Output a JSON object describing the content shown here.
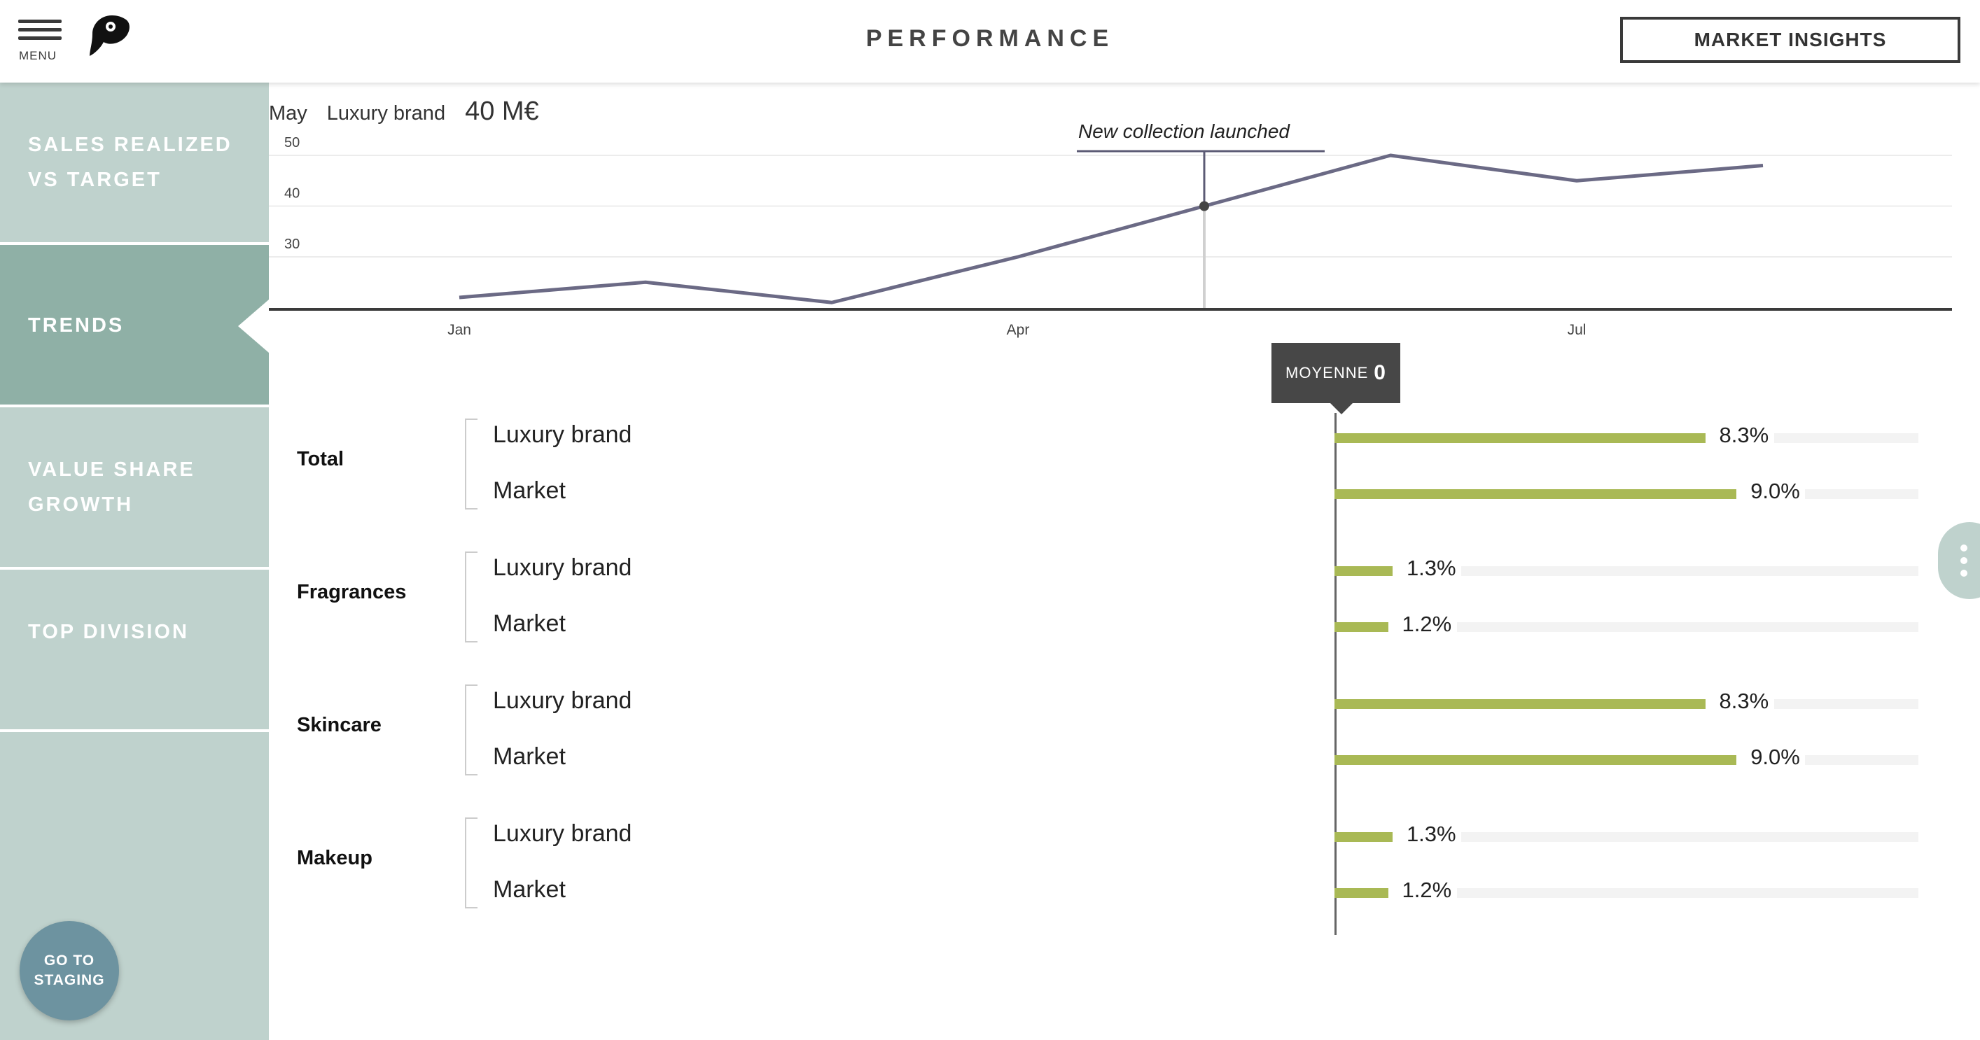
{
  "header": {
    "menu_label": "MENU",
    "title": "PERFORMANCE",
    "insights_button": "MARKET INSIGHTS"
  },
  "sidebar": {
    "items": [
      {
        "label": "SALES REALIZED\nVS TARGET",
        "active": false
      },
      {
        "label": "TRENDS",
        "active": true
      },
      {
        "label": "VALUE SHARE\nGROWTH",
        "active": false
      },
      {
        "label": "TOP DIVISION",
        "active": false
      }
    ],
    "staging_button": "GO TO\nSTAGING"
  },
  "trend": {
    "tooltip": {
      "month": "May",
      "brand": "Luxury brand",
      "value": "40 M€"
    },
    "annotation": "New collection launched"
  },
  "chart_data": {
    "type": "line",
    "x": [
      "Jan",
      "Feb",
      "Mar",
      "Apr",
      "May",
      "Jun",
      "Jul",
      "Aug"
    ],
    "x_tick_labels": [
      "Jan",
      "Apr",
      "Jul"
    ],
    "series": [
      {
        "values": [
          22,
          25,
          21,
          30,
          40,
          50,
          45,
          48
        ]
      }
    ],
    "y_ticks": [
      30,
      40,
      50
    ],
    "ylim": [
      20,
      52
    ],
    "highlight": {
      "x": "May",
      "y": 40
    }
  },
  "average": {
    "label": "MOYENNE",
    "value": "0"
  },
  "groups": [
    {
      "name": "Total",
      "rows": [
        {
          "label": "Luxury brand",
          "value": 8.3,
          "text": "8.3%"
        },
        {
          "label": "Market",
          "value": 9.0,
          "text": "9.0%"
        }
      ]
    },
    {
      "name": "Fragrances",
      "rows": [
        {
          "label": "Luxury brand",
          "value": 1.3,
          "text": "1.3%"
        },
        {
          "label": "Market",
          "value": 1.2,
          "text": "1.2%"
        }
      ]
    },
    {
      "name": "Skincare",
      "rows": [
        {
          "label": "Luxury brand",
          "value": 8.3,
          "text": "8.3%"
        },
        {
          "label": "Market",
          "value": 9.0,
          "text": "9.0%"
        }
      ]
    },
    {
      "name": "Makeup",
      "rows": [
        {
          "label": "Luxury brand",
          "value": 1.3,
          "text": "1.3%"
        },
        {
          "label": "Market",
          "value": 1.2,
          "text": "1.2%"
        }
      ]
    }
  ],
  "colors": {
    "sidebar": "#bfd2cd",
    "sidebar_active": "#8fb0a6",
    "bar": "#a9b955",
    "line": "#6b6a85",
    "staging": "#6d93a0"
  },
  "icons": {
    "menu": "hamburger-icon",
    "logo": "toucan-logo",
    "more": "more-vertical-icon"
  }
}
